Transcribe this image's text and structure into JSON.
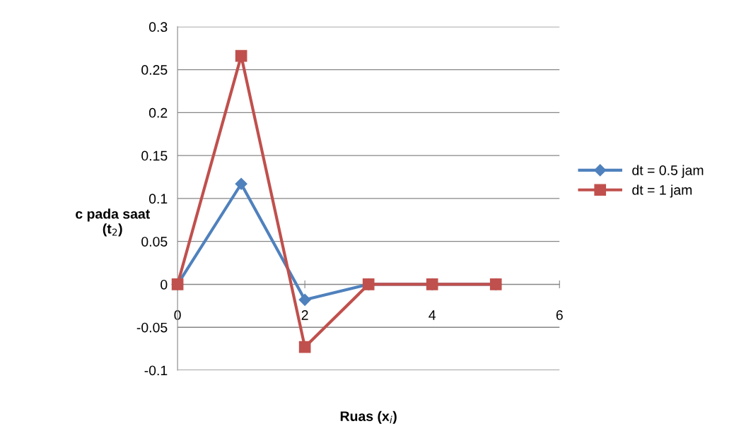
{
  "chart_data": {
    "type": "line",
    "xlabel": "Ruas (x$_{i}$)",
    "ylabel": "c pada saat\n(t$_{2}$)",
    "xlim": [
      0,
      6
    ],
    "xticks": [
      0,
      2,
      4,
      6
    ],
    "ylim": [
      -0.1,
      0.3
    ],
    "yticks": [
      -0.1,
      -0.05,
      0,
      0.05,
      0.1,
      0.15,
      0.2,
      0.25,
      0.3
    ],
    "grid": "y",
    "legend": "right",
    "series": [
      {
        "name": "dt = 0.5 jam",
        "color": "#4f81bd",
        "marker": "diamond",
        "x": [
          0,
          1,
          2,
          3,
          4,
          5
        ],
        "values": [
          0,
          0.117,
          -0.018,
          0,
          0,
          0
        ]
      },
      {
        "name": "dt = 1 jam",
        "color": "#c0504d",
        "marker": "square",
        "x": [
          0,
          1,
          2,
          3,
          4,
          5
        ],
        "values": [
          0,
          0.266,
          -0.073,
          0,
          0,
          0
        ]
      }
    ]
  }
}
